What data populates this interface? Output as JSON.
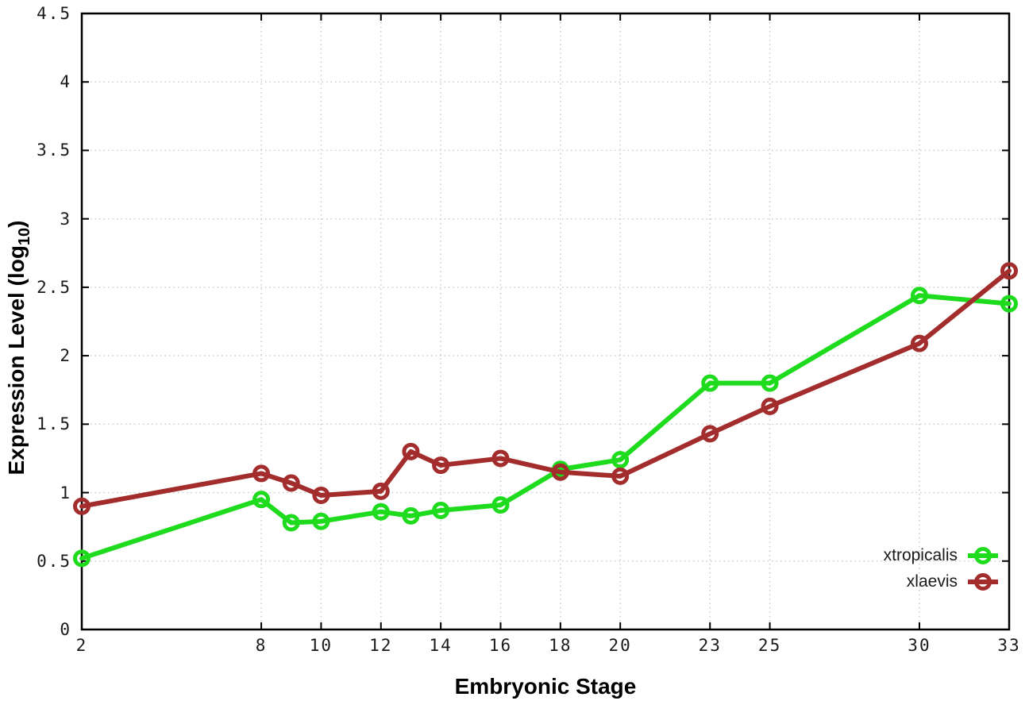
{
  "chart_data": {
    "type": "line",
    "title": "",
    "xlabel": "Embryonic Stage",
    "ylabel": {
      "prefix": "Expression Level (log",
      "sub": "10",
      "suffix": ")"
    },
    "xlim": [
      2,
      33
    ],
    "ylim": [
      0,
      4.5
    ],
    "grid": true,
    "legend_position": "inside-bottom-right",
    "xticks": [
      2,
      8,
      10,
      12,
      14,
      16,
      18,
      20,
      23,
      25,
      30,
      33
    ],
    "xtick_labels": [
      "2",
      "8",
      "10",
      "12",
      "14",
      "16",
      "18",
      "20",
      "23",
      "25",
      "30",
      "33"
    ],
    "yticks": [
      0,
      0.5,
      1,
      1.5,
      2,
      2.5,
      3,
      3.5,
      4,
      4.5
    ],
    "ytick_labels": [
      "0",
      "0.5",
      "1",
      "1.5",
      "2",
      "2.5",
      "3",
      "3.5",
      "4",
      "4.5"
    ],
    "x": [
      2,
      8,
      9,
      10,
      12,
      13,
      14,
      16,
      18,
      20,
      23,
      25,
      30,
      33
    ],
    "series": [
      {
        "name": "xtropicalis",
        "color": "#1edb1e",
        "marker": "open-circle",
        "values": [
          0.52,
          0.95,
          0.78,
          0.79,
          0.86,
          0.83,
          0.87,
          0.91,
          1.17,
          1.24,
          1.8,
          1.8,
          2.44,
          2.38
        ]
      },
      {
        "name": "xlaevis",
        "color": "#a32c2c",
        "marker": "open-circle",
        "values": [
          0.9,
          1.14,
          1.07,
          0.98,
          1.01,
          1.3,
          1.2,
          1.25,
          1.15,
          1.12,
          1.43,
          1.63,
          2.09,
          2.62
        ]
      }
    ],
    "style": {
      "grid_color": "#c8c8c8",
      "border_color": "#000000",
      "tick_text_color": "#1a1a1a"
    }
  }
}
